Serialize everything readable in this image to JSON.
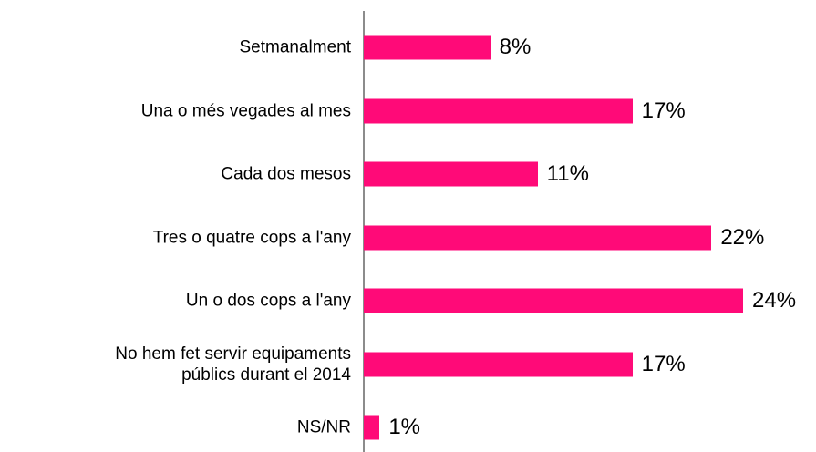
{
  "chart_data": {
    "type": "bar",
    "orientation": "horizontal",
    "categories": [
      "Setmanalment",
      "Una o més vegades al mes",
      "Cada dos mesos",
      "Tres o quatre cops a l'any",
      "Un o dos cops a l'any",
      "No hem fet servir equipaments\npúblics durant el 2014",
      "NS/NR"
    ],
    "values": [
      8,
      17,
      11,
      22,
      24,
      17,
      1
    ],
    "value_labels": [
      "8%",
      "17%",
      "11%",
      "22%",
      "24%",
      "17%",
      "1%"
    ],
    "color": "#ff0a78"
  }
}
